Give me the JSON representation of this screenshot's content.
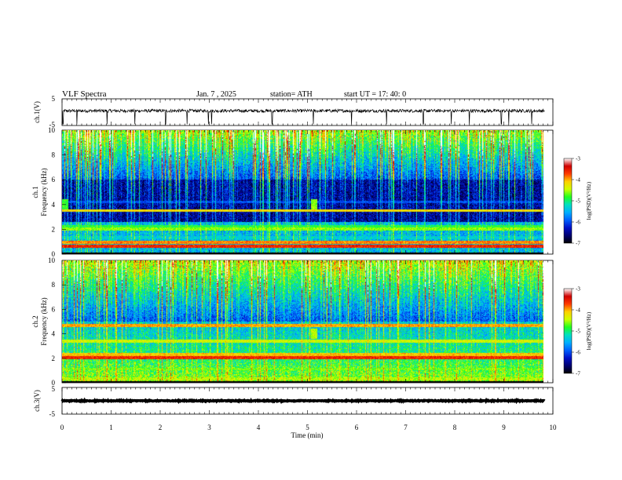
{
  "header": {
    "title": "VLF  Spectra",
    "date": "Jan.  7  , 2025",
    "station": "station= ATH",
    "start_ut": "start  UT  =   17: 40: 0"
  },
  "colors": {
    "colormap": [
      "#ffffff",
      "#d00000",
      "#ff3b00",
      "#ffd000",
      "#d0ff00",
      "#20ff20",
      "#00e0c0",
      "#00b0ff",
      "#0060ff",
      "#0010c8",
      "#000070",
      "#000000"
    ]
  },
  "chart_data": [
    {
      "type": "line",
      "name": "ch1-waveform",
      "ylabel": "ch.1(V)",
      "ylim": [
        -5,
        5
      ],
      "ytick_labels": [
        "5",
        "-5"
      ],
      "xlim": [
        0,
        10
      ],
      "baseline": 0.5,
      "noise_amplitude": 0.6,
      "spike_times": [
        0.02,
        0.3,
        0.92,
        1.48,
        2.11,
        2.55,
        2.98,
        3.05,
        4.28,
        5.12,
        5.9,
        6.61,
        7.36,
        7.93,
        8.3,
        8.95,
        9.1,
        9.57
      ],
      "spike_depth": -4.5
    },
    {
      "type": "heatmap",
      "name": "ch1-spectrogram",
      "ylabel": "ch.1",
      "ylabel2": "Frequency (kHz)",
      "xlim": [
        0,
        9.83
      ],
      "ylim": [
        0,
        10
      ],
      "ytick_labels": [
        "0",
        "2",
        "4",
        "6",
        "8",
        "10"
      ],
      "colorbar": {
        "range": [
          -7,
          -3
        ],
        "tick_labels": [
          "-3",
          "-4",
          "-5",
          "-6",
          "-7"
        ],
        "label": "log(PSD)(V²/Hz)"
      },
      "bands_khz": [
        {
          "f": 0.6,
          "level": -3.6
        },
        {
          "f": 0.9,
          "level": -3.9
        },
        {
          "f": 1.3,
          "level": -5.4
        },
        {
          "f": 2.0,
          "level": -4.6
        },
        {
          "f": 2.2,
          "level": -4.9
        },
        {
          "f": 3.5,
          "level": -4.2
        },
        {
          "f": 4.2,
          "level": -6.0
        }
      ],
      "bursts": [
        {
          "t": 0.05,
          "f": 4.0,
          "level": -4.8
        },
        {
          "t": 5.15,
          "f": 4.0,
          "level": -4.6
        }
      ]
    },
    {
      "type": "heatmap",
      "name": "ch2-spectrogram",
      "ylabel": "ch.2",
      "ylabel2": "Frequency (kHz)",
      "xlim": [
        0,
        9.83
      ],
      "ylim": [
        0,
        10
      ],
      "ytick_labels": [
        "0",
        "2",
        "4",
        "6",
        "8",
        "10"
      ],
      "colorbar": {
        "range": [
          -7,
          -3
        ],
        "tick_labels": [
          "-3",
          "-4",
          "-5",
          "-6",
          "-7"
        ],
        "label": "log(PSD)(V²/Hz)"
      },
      "bands_khz": [
        {
          "f": 0.3,
          "level": -4.6
        },
        {
          "f": 1.1,
          "level": -4.8
        },
        {
          "f": 2.05,
          "level": -3.6
        },
        {
          "f": 2.3,
          "level": -4.1
        },
        {
          "f": 3.4,
          "level": -4.4
        },
        {
          "f": 4.7,
          "level": -4.0
        }
      ],
      "bursts": [
        {
          "t": 5.15,
          "f": 4.0,
          "level": -4.5
        }
      ]
    },
    {
      "type": "line",
      "name": "ch3-waveform",
      "ylabel": "ch.3(V)",
      "ylim": [
        -5,
        5
      ],
      "ytick_labels": [
        "5",
        "-5"
      ],
      "xlim": [
        0,
        10
      ],
      "baseline": 0.0,
      "noise_amplitude": 0.15,
      "spike_times": [],
      "spike_depth": 0
    }
  ],
  "x_axis": {
    "label": "Time (min)",
    "range": [
      0,
      10
    ],
    "tick_labels": [
      "0",
      "1",
      "2",
      "3",
      "4",
      "5",
      "6",
      "7",
      "8",
      "9",
      "10"
    ]
  }
}
